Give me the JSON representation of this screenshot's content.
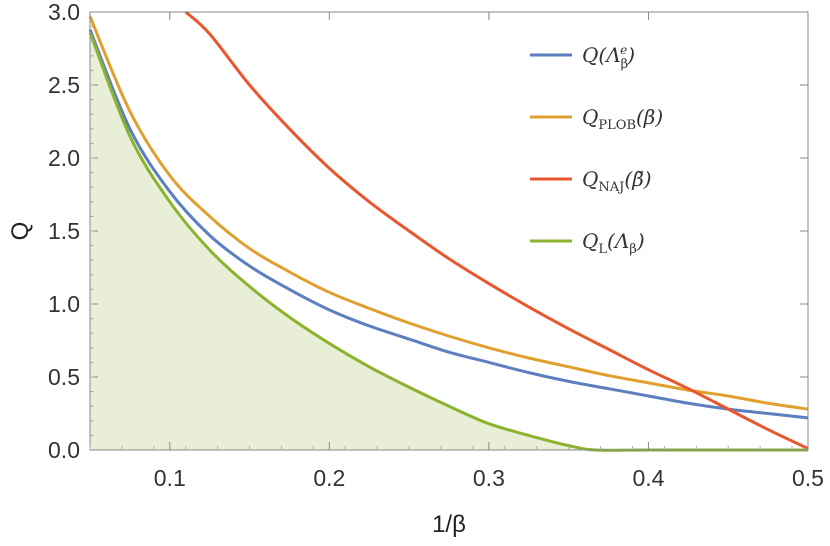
{
  "chart_data": {
    "type": "line",
    "xlabel": "1/β",
    "ylabel": "Q",
    "xlim": [
      0.05,
      0.5
    ],
    "ylim": [
      0.0,
      3.0
    ],
    "x_ticks": [
      "0.1",
      "0.2",
      "0.3",
      "0.4",
      "0.5"
    ],
    "y_ticks": [
      "0.0",
      "0.5",
      "1.0",
      "1.5",
      "2.0",
      "2.5",
      "3.0"
    ],
    "grid": false,
    "legend_position": "top-right",
    "shaded_region": {
      "series": "Q_L(Λ_β)",
      "color": "#e8efd6"
    },
    "series": [
      {
        "name": "Q(Λ_β^e)",
        "legend": {
          "main": "Q(Λ",
          "sub": "β",
          "sup": "e",
          "tail": ")"
        },
        "color": "#5b7fbf",
        "x": [
          0.05,
          0.075,
          0.1,
          0.125,
          0.15,
          0.175,
          0.2,
          0.225,
          0.25,
          0.275,
          0.3,
          0.325,
          0.35,
          0.375,
          0.4,
          0.425,
          0.45,
          0.475,
          0.5
        ],
        "y": [
          2.88,
          2.2,
          1.77,
          1.47,
          1.26,
          1.1,
          0.96,
          0.85,
          0.76,
          0.67,
          0.6,
          0.53,
          0.47,
          0.42,
          0.37,
          0.32,
          0.28,
          0.25,
          0.22
        ]
      },
      {
        "name": "Q_PLOB(β)",
        "legend": {
          "main": "Q",
          "sub": "PLOB",
          "sup": "",
          "tail": "(β)"
        },
        "color": "#e0a030",
        "x": [
          0.05,
          0.075,
          0.1,
          0.125,
          0.15,
          0.175,
          0.2,
          0.225,
          0.25,
          0.275,
          0.3,
          0.325,
          0.35,
          0.375,
          0.4,
          0.425,
          0.45,
          0.475,
          0.5
        ],
        "y": [
          2.97,
          2.32,
          1.88,
          1.6,
          1.38,
          1.22,
          1.08,
          0.97,
          0.87,
          0.78,
          0.7,
          0.63,
          0.57,
          0.51,
          0.46,
          0.41,
          0.37,
          0.32,
          0.28
        ]
      },
      {
        "name": "Q_NAJ(β̃)",
        "legend": {
          "main": "Q",
          "sub": "NAJ",
          "sup": "",
          "tail": "(β̃)"
        },
        "color": "#e8572e",
        "x": [
          0.11,
          0.125,
          0.15,
          0.175,
          0.2,
          0.225,
          0.25,
          0.275,
          0.3,
          0.325,
          0.35,
          0.375,
          0.4,
          0.425,
          0.45,
          0.475,
          0.5
        ],
        "y": [
          3.0,
          2.85,
          2.5,
          2.2,
          1.93,
          1.7,
          1.5,
          1.31,
          1.14,
          0.98,
          0.83,
          0.69,
          0.55,
          0.42,
          0.28,
          0.14,
          0.01
        ]
      },
      {
        "name": "Q_L(Λ_β)",
        "legend": {
          "main": "Q",
          "sub": "L",
          "sup": "",
          "tail": "(Λ",
          "tail_sub": "β",
          "tail_end": ")"
        },
        "color": "#8ab32e",
        "x": [
          0.05,
          0.075,
          0.1,
          0.125,
          0.15,
          0.175,
          0.2,
          0.225,
          0.25,
          0.275,
          0.3,
          0.325,
          0.35,
          0.367,
          0.4,
          0.45,
          0.5
        ],
        "y": [
          2.86,
          2.15,
          1.7,
          1.37,
          1.12,
          0.91,
          0.73,
          0.57,
          0.43,
          0.3,
          0.18,
          0.1,
          0.03,
          0.0,
          0.0,
          0.0,
          0.0
        ]
      }
    ]
  }
}
